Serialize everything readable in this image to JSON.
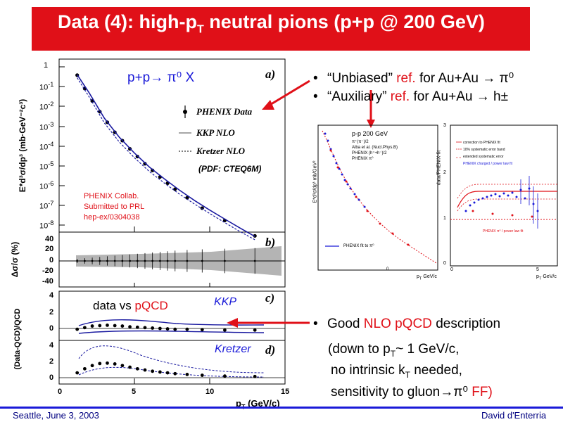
{
  "slide": {
    "title_pre": "Data (4): high-p",
    "title_sub": "T",
    "title_post": " neutral pions (p+p @ 200 GeV)",
    "footer_left": "Seattle, June  3, 2003",
    "footer_right": "David d'Enterria"
  },
  "bullets": {
    "b1_q": "“Unbiased”",
    "b1_red": "ref.",
    "b1_rest": "for Au+Au → π⁰",
    "b2_q": "“Auxiliary”",
    "b2_red": "ref.",
    "b2_rest": "for Au+Au → h±",
    "b3_pre": "Good",
    "b3_red": "NLO pQCD",
    "b3_post": "description",
    "b3_l2": "(down to p",
    "b3_l2_sub": "T",
    "b3_l2_post": "~ 1 GeV/c,",
    "b3_l3": "no intrinsic k",
    "b3_l3_sub": "T",
    "b3_l3_post": " needed,",
    "b3_l4": "sensitivity to gluon→π⁰",
    "b3_l4_red": "FF)"
  },
  "main_plot": {
    "reaction": "p+p→ π⁰ X",
    "panel_a": "a)",
    "panel_b": "b)",
    "panel_c": "c)",
    "panel_d": "d)",
    "legend_data": "PHENIX Data",
    "legend_kkp": "KKP NLO",
    "legend_kretzer": "Kretzer NLO",
    "pdf_note": "(PDF: CTEQ6M)",
    "collab_1": "PHENIX Collab.",
    "collab_2": "Submitted to PRL",
    "collab_3": "hep-ex/0304038",
    "ylabel_a": "E*d³σ/dp³ (mb·GeV⁻²c³)",
    "ylabel_b": "Δσ/σ (%)",
    "ylabel_cd": "(Data-QCD)/QCD",
    "data_vs": "data vs",
    "pqcd": "pQCD",
    "kkp_label": "KKP",
    "kretzer_label": "Kretzer",
    "xlabel": "p",
    "xlabel_sub": "T",
    "xlabel_unit": " (GeV/c)"
  },
  "inset_left": {
    "title": "p-p 200 GeV",
    "legend_1": "π⁺(π⁻)/2",
    "legend_2": "Alba et al. (Nucl.Phys.B)",
    "legend_3": "PHENIX (h⁺+h⁻)/2",
    "legend_4": "PHENIX π⁰",
    "fit_label": "PHENIX fit to π⁰",
    "ylabel": "E*d³σ/dp³ mb/GeV²",
    "xlabel": "p",
    "xlabel_sub": "T",
    "xlabel_unit": " GeV/c"
  },
  "inset_right": {
    "legend_1": "correction to PHENIX fit",
    "legend_2": "10% systematic error band",
    "legend_3": "extended systematic error",
    "legend_4": "PHENIX charged / power law fit",
    "legend_5": "PHENIX π⁰ / power law fit",
    "ylabel": "data/PHENIX-fit",
    "xlabel": "p",
    "xlabel_sub": "T",
    "xlabel_unit": " GeV/c"
  },
  "colors": {
    "banner": "#e01018",
    "accent_blue": "#1a1ad8",
    "red_text": "#e01018"
  },
  "chart_data": [
    {
      "type": "scatter",
      "title": "",
      "panel": "a",
      "xlabel": "pT (GeV/c)",
      "ylabel": "E*d3σ/dp3 (mb·GeV-2c3)",
      "yscale": "log",
      "xlim": [
        0,
        15
      ],
      "ylim": [
        5e-09,
        2
      ],
      "xticks": [
        0,
        5,
        10,
        15
      ],
      "yticks": [
        "1",
        "10^-1",
        "10^-2",
        "10^-3",
        "10^-4",
        "10^-5",
        "10^-6",
        "10^-7",
        "10^-8"
      ],
      "series": [
        {
          "name": "PHENIX Data",
          "x": [
            1.2,
            1.7,
            2.2,
            2.7,
            3.2,
            3.7,
            4.2,
            4.7,
            5.2,
            5.7,
            6.2,
            6.7,
            7.2,
            7.7,
            8.5,
            9.5,
            11.0,
            13.0
          ],
          "y": [
            0.38,
            0.08,
            0.019,
            0.0055,
            0.0016,
            0.0005,
            0.00019,
            7.3e-05,
            3e-05,
            1.3e-05,
            6e-06,
            2.8e-06,
            1.35e-06,
            6.8e-07,
            2.5e-07,
            7.5e-08,
            1.8e-08,
            3e-09
          ]
        },
        {
          "name": "KKP NLO",
          "x": [
            1.2,
            2,
            3,
            4,
            5,
            6,
            7,
            8,
            9,
            10,
            11,
            12,
            13
          ],
          "y": [
            0.4,
            0.048,
            0.0026,
            0.00028,
            4.5e-05,
            8.8e-06,
            2.2e-06,
            6e-07,
            1.8e-07,
            6e-08,
            2.1e-08,
            7.5e-09,
            2.8e-09
          ]
        },
        {
          "name": "Kretzer NLO",
          "x": [
            1.2,
            2,
            3,
            4,
            5,
            6,
            7,
            8,
            9,
            10,
            11,
            12,
            13
          ],
          "y": [
            0.28,
            0.03,
            0.0015,
            0.00016,
            2.6e-05,
            5.2e-06,
            1.35e-06,
            3.8e-07,
            1.2e-07,
            4e-08,
            1.4e-08,
            5e-09,
            1.9e-09
          ]
        }
      ]
    },
    {
      "type": "scatter",
      "panel": "b",
      "xlabel": "pT (GeV/c)",
      "ylabel": "Δσ/σ (%)",
      "xlim": [
        0,
        15
      ],
      "ylim": [
        -45,
        45
      ],
      "yticks": [
        40,
        20,
        0,
        -20,
        -40
      ],
      "series": [
        {
          "name": "",
          "x": [
            1.2,
            1.7,
            2.2,
            2.7,
            3.2,
            3.7,
            4.2,
            4.7,
            5.2,
            5.7,
            6.2,
            6.7,
            7.2,
            7.7,
            8.5,
            9.5,
            11.0,
            13.0
          ],
          "y": [
            0,
            0,
            0,
            0,
            0,
            0,
            0,
            0,
            0,
            0,
            0,
            0,
            0,
            0,
            0,
            0,
            0,
            0
          ]
        }
      ]
    },
    {
      "type": "scatter",
      "panel": "c",
      "xlim": [
        0,
        15
      ],
      "ylim": [
        -1,
        4
      ],
      "yticks": [
        4,
        2,
        0
      ],
      "series": [
        {
          "name": "KKP",
          "x": [
            1.2,
            1.7,
            2.2,
            2.7,
            3.2,
            3.7,
            4.2,
            4.7,
            5.2,
            5.7,
            6.2,
            6.7,
            7.2,
            7.7,
            8.5,
            9.5,
            11.0,
            13.0
          ],
          "y": [
            -0.1,
            0.1,
            0.3,
            0.35,
            0.4,
            0.35,
            0.3,
            0.2,
            0.15,
            0.1,
            0.05,
            0.0,
            -0.05,
            -0.1,
            -0.1,
            -0.15,
            -0.2,
            -0.2
          ]
        }
      ]
    },
    {
      "type": "scatter",
      "panel": "d",
      "xlim": [
        0,
        15
      ],
      "ylim": [
        -0.5,
        4.5
      ],
      "yticks": [
        4,
        2,
        0
      ],
      "series": [
        {
          "name": "Kretzer",
          "x": [
            1.2,
            1.7,
            2.2,
            2.7,
            3.2,
            3.7,
            4.2,
            4.7,
            5.2,
            5.7,
            6.2,
            6.7,
            7.2,
            7.7,
            8.5,
            9.5,
            11.0,
            13.0
          ],
          "y": [
            0.6,
            1.1,
            1.5,
            1.75,
            1.8,
            1.7,
            1.5,
            1.3,
            1.1,
            0.95,
            0.8,
            0.7,
            0.6,
            0.5,
            0.4,
            0.3,
            0.2,
            0.15
          ]
        }
      ]
    }
  ]
}
